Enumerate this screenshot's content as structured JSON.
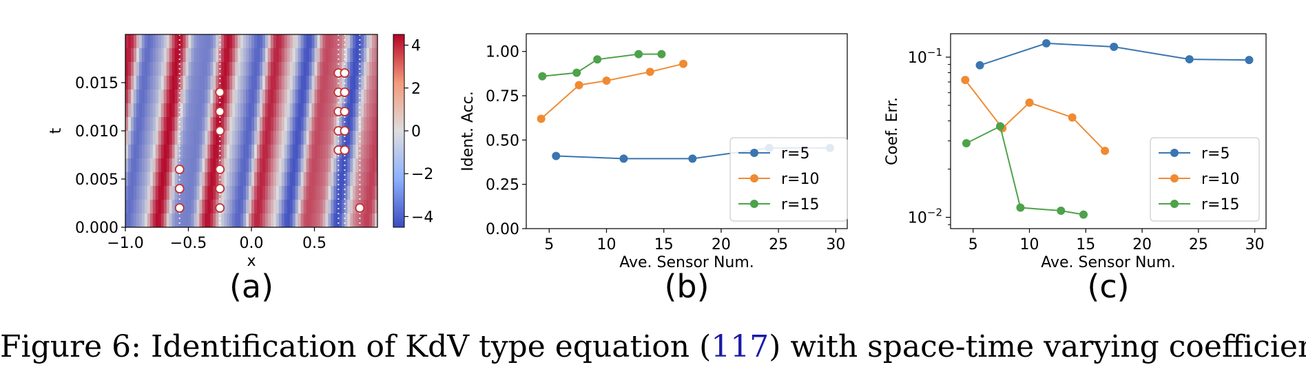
{
  "caption": {
    "label": "Figure 6:",
    "text_before": "Identification of KdV type equation (",
    "ref": "117",
    "text_after": ") with space-time varying coefficients."
  },
  "chart_data": [
    {
      "id": "a",
      "type": "heatmap",
      "subfig_label": "(a)",
      "xlabel": "x",
      "ylabel": "t",
      "xlim": [
        -1.0,
        1.0
      ],
      "ylim": [
        0.0,
        0.02
      ],
      "x_ticks": [
        "−1.0",
        "−0.5",
        "0.0",
        "0.5"
      ],
      "x_tick_values": [
        -1.0,
        -0.5,
        0.0,
        0.5
      ],
      "y_ticks": [
        "0.000",
        "0.005",
        "0.010",
        "0.015"
      ],
      "y_tick_values": [
        0.0,
        0.005,
        0.01,
        0.015
      ],
      "colorbar": {
        "ticks": [
          "4",
          "2",
          "0",
          "−2",
          "−4"
        ],
        "tick_values": [
          4,
          2,
          0,
          -2,
          -4
        ],
        "min": -4.5,
        "max": 4.5,
        "cmap": [
          "#3b4cc0",
          "#dddddd",
          "#b40426"
        ]
      },
      "sensor_lines_x": [
        -0.57,
        -0.25,
        0.69,
        0.74,
        0.86
      ],
      "sensors": [
        {
          "x": -0.57,
          "t": 0.002
        },
        {
          "x": -0.57,
          "t": 0.004
        },
        {
          "x": -0.57,
          "t": 0.006
        },
        {
          "x": -0.25,
          "t": 0.002
        },
        {
          "x": -0.25,
          "t": 0.004
        },
        {
          "x": -0.25,
          "t": 0.006
        },
        {
          "x": -0.25,
          "t": 0.01
        },
        {
          "x": -0.25,
          "t": 0.012
        },
        {
          "x": -0.25,
          "t": 0.014
        },
        {
          "x": 0.69,
          "t": 0.008
        },
        {
          "x": 0.69,
          "t": 0.01
        },
        {
          "x": 0.69,
          "t": 0.012
        },
        {
          "x": 0.69,
          "t": 0.014
        },
        {
          "x": 0.69,
          "t": 0.016
        },
        {
          "x": 0.74,
          "t": 0.008
        },
        {
          "x": 0.74,
          "t": 0.01
        },
        {
          "x": 0.74,
          "t": 0.012
        },
        {
          "x": 0.74,
          "t": 0.014
        },
        {
          "x": 0.74,
          "t": 0.016
        },
        {
          "x": 0.86,
          "t": 0.002
        }
      ]
    },
    {
      "id": "b",
      "type": "line",
      "subfig_label": "(b)",
      "xlabel": "Ave. Sensor Num.",
      "ylabel": "Ident. Acc.",
      "xlim": [
        3,
        31
      ],
      "ylim": [
        0.0,
        1.1
      ],
      "x_ticks": [
        "5",
        "10",
        "15",
        "20",
        "25",
        "30"
      ],
      "x_tick_values": [
        5,
        10,
        15,
        20,
        25,
        30
      ],
      "y_ticks": [
        "0.00",
        "0.25",
        "0.50",
        "0.75",
        "1.00"
      ],
      "y_tick_values": [
        0.0,
        0.25,
        0.5,
        0.75,
        1.0
      ],
      "legend_position": "lower right",
      "series": [
        {
          "name": "r=5",
          "color": "#3a75b0",
          "x": [
            5.6,
            11.5,
            17.5,
            24.2,
            29.5
          ],
          "y": [
            0.41,
            0.395,
            0.395,
            0.455,
            0.455
          ]
        },
        {
          "name": "r=10",
          "color": "#f08a32",
          "x": [
            4.3,
            7.6,
            10.0,
            13.8,
            16.7
          ],
          "y": [
            0.62,
            0.81,
            0.835,
            0.885,
            0.93
          ]
        },
        {
          "name": "r=15",
          "color": "#4ea24a",
          "x": [
            4.4,
            7.4,
            9.2,
            12.8,
            14.8
          ],
          "y": [
            0.86,
            0.88,
            0.955,
            0.985,
            0.985
          ]
        }
      ]
    },
    {
      "id": "c",
      "type": "line",
      "subfig_label": "(c)",
      "xlabel": "Ave. Sensor Num.",
      "ylabel": "Coef. Err.",
      "yscale": "log",
      "xlim": [
        3,
        31
      ],
      "ylim": [
        0.0085,
        0.14
      ],
      "x_ticks": [
        "5",
        "10",
        "15",
        "20",
        "25",
        "30"
      ],
      "x_tick_values": [
        5,
        10,
        15,
        20,
        25,
        30
      ],
      "y_ticks_major": [
        0.01,
        0.1
      ],
      "legend_position": "center right",
      "series": [
        {
          "name": "r=5",
          "color": "#3a75b0",
          "x": [
            5.6,
            11.5,
            17.5,
            24.2,
            29.5
          ],
          "y": [
            0.089,
            0.122,
            0.116,
            0.097,
            0.096
          ]
        },
        {
          "name": "r=10",
          "color": "#f08a32",
          "x": [
            4.3,
            7.6,
            10.0,
            13.8,
            16.7
          ],
          "y": [
            0.072,
            0.036,
            0.052,
            0.042,
            0.026
          ]
        },
        {
          "name": "r=15",
          "color": "#4ea24a",
          "x": [
            4.4,
            7.4,
            9.2,
            12.8,
            14.8
          ],
          "y": [
            0.029,
            0.037,
            0.0115,
            0.011,
            0.0104
          ]
        }
      ]
    }
  ]
}
